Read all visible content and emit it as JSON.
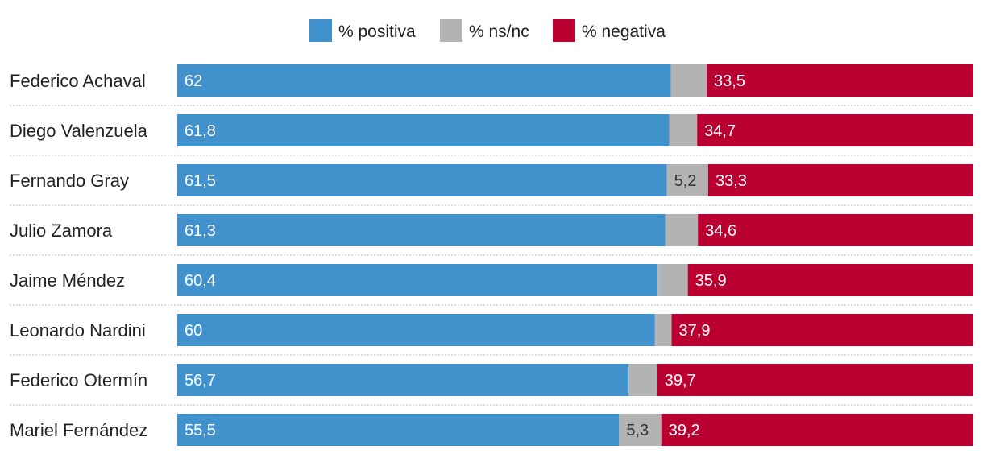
{
  "chart_data": {
    "type": "bar",
    "orientation": "horizontal",
    "stacked": true,
    "normalized_to": 100,
    "title": "",
    "xlabel": "",
    "ylabel": "",
    "xlim": [
      0,
      100
    ],
    "legend_position": "top-center",
    "grid": false,
    "categories": [
      "Federico Achaval",
      "Diego Valenzuela",
      "Fernando Gray",
      "Julio Zamora",
      "Jaime Méndez",
      "Leonardo Nardini",
      "Federico Otermín",
      "Mariel Fernández"
    ],
    "series": [
      {
        "name": "% positiva",
        "color": "#4191CD",
        "values": [
          62,
          61.8,
          61.5,
          61.3,
          60.4,
          60,
          56.7,
          55.5
        ],
        "labels": [
          "62",
          "61,8",
          "61,5",
          "61,3",
          "60,4",
          "60",
          "56,7",
          "55,5"
        ]
      },
      {
        "name": "% ns/nc",
        "color": "#B3B3B3",
        "values": [
          4.5,
          3.5,
          5.2,
          4.1,
          3.8,
          2.1,
          3.6,
          5.3
        ],
        "labels": [
          "",
          "",
          "5,2",
          "",
          "",
          "",
          "",
          "5,3"
        ]
      },
      {
        "name": "% negativa",
        "color": "#BA0031",
        "values": [
          33.5,
          34.7,
          33.3,
          34.6,
          35.9,
          37.9,
          39.7,
          39.2
        ],
        "labels": [
          "33,5",
          "34,7",
          "33,3",
          "34,6",
          "35,9",
          "37,9",
          "39,7",
          "39,2"
        ]
      }
    ]
  }
}
